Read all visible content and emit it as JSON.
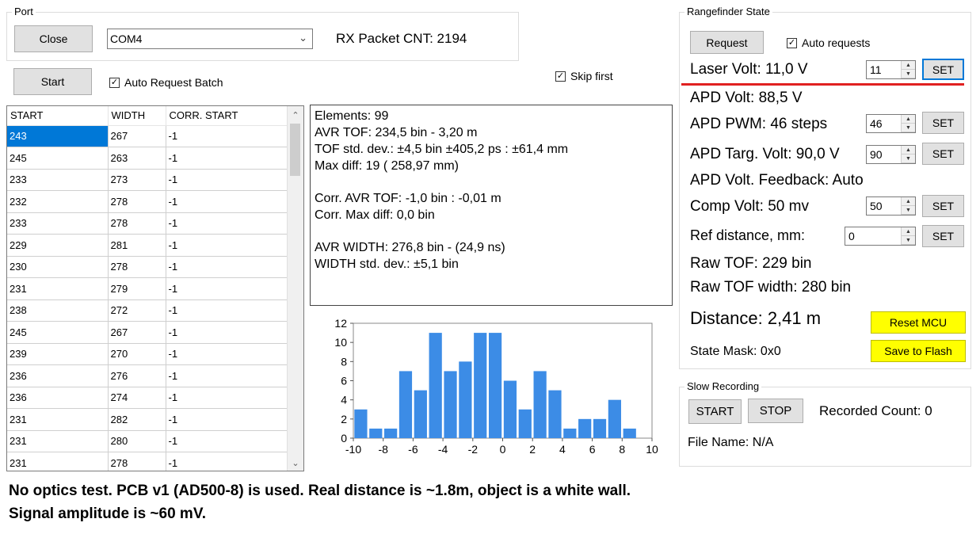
{
  "port": {
    "group_title": "Port",
    "close_button": "Close",
    "com_port": "COM4",
    "rx_packet_cnt": "RX Packet CNT: 2194",
    "start_button": "Start",
    "auto_request_batch": "Auto Request Batch",
    "skip_first": "Skip first"
  },
  "table": {
    "columns": [
      "START",
      "WIDTH",
      "CORR. START"
    ],
    "rows": [
      [
        "243",
        "267",
        "-1"
      ],
      [
        "245",
        "263",
        "-1"
      ],
      [
        "233",
        "273",
        "-1"
      ],
      [
        "232",
        "278",
        "-1"
      ],
      [
        "233",
        "278",
        "-1"
      ],
      [
        "229",
        "281",
        "-1"
      ],
      [
        "230",
        "278",
        "-1"
      ],
      [
        "231",
        "279",
        "-1"
      ],
      [
        "238",
        "272",
        "-1"
      ],
      [
        "245",
        "267",
        "-1"
      ],
      [
        "239",
        "270",
        "-1"
      ],
      [
        "236",
        "276",
        "-1"
      ],
      [
        "236",
        "274",
        "-1"
      ],
      [
        "231",
        "282",
        "-1"
      ],
      [
        "231",
        "280",
        "-1"
      ],
      [
        "231",
        "278",
        "-1"
      ]
    ]
  },
  "stats": {
    "elements": "Elements: 99",
    "avr_tof": "AVR TOF: 234,5 bin - 3,20  m",
    "tof_std": "TOF std. dev.: ±4,5 bin ±405,2 ps : ±61,4 mm",
    "max_diff": "Max diff: 19 ( 258,97 mm)",
    "corr_avr_tof": "Corr. AVR TOF: -1,0 bin : -0,01  m",
    "corr_max_diff": "Corr. Max diff: 0,0 bin",
    "avr_width": "AVR WIDTH: 276,8 bin - (24,9 ns)",
    "width_std": "WIDTH std. dev.: ±5,1 bin"
  },
  "chart_data": {
    "type": "bar",
    "x": [
      -9.5,
      -8.5,
      -7.5,
      -6.5,
      -5.5,
      -4.5,
      -3.5,
      -2.5,
      -1.5,
      -0.5,
      0.5,
      1.5,
      2.5,
      3.5,
      4.5,
      5.5,
      6.5,
      7.5,
      8.5,
      9.5
    ],
    "values": [
      3,
      1,
      1,
      7,
      5,
      11,
      7,
      8,
      11,
      11,
      6,
      3,
      7,
      5,
      1,
      2,
      2,
      4,
      1,
      0
    ],
    "xlim": [
      -10,
      10
    ],
    "ylim": [
      0,
      12
    ],
    "xticks": [
      "-10",
      "-8",
      "-6",
      "-4",
      "-2",
      "0",
      "2",
      "4",
      "6",
      "8",
      "10"
    ],
    "yticks": [
      "0",
      "2",
      "4",
      "6",
      "8",
      "10",
      "12"
    ],
    "bar_color": "#3c8ce6",
    "grid": false
  },
  "rangefinder": {
    "group_title": "Rangefinder State",
    "request_button": "Request",
    "auto_requests": "Auto requests",
    "laser_volt": "Laser Volt: 11,0 V",
    "laser_volt_value": "11",
    "apd_volt": "APD Volt: 88,5 V",
    "apd_pwm": "APD PWM: 46 steps",
    "apd_pwm_value": "46",
    "apd_targ_volt": "APD Targ. Volt: 90,0 V",
    "apd_targ_value": "90",
    "apd_feedback": "APD Volt. Feedback: Auto",
    "comp_volt": "Comp Volt: 50 mv",
    "comp_volt_value": "50",
    "ref_distance": "Ref distance, mm:",
    "ref_distance_value": "0",
    "set_label": "SET",
    "raw_tof": "Raw TOF:  229 bin",
    "raw_tof_width": "Raw TOF width:  280 bin",
    "distance": "Distance: 2,41 m",
    "reset_mcu": "Reset MCU",
    "state_mask": "State Mask: 0x0",
    "save_to_flash": "Save to Flash"
  },
  "slow_recording": {
    "group_title": "Slow Recording",
    "start_button": "START",
    "stop_button": "STOP",
    "recorded_count": "Recorded Count: 0",
    "file_name": "File Name: N/A"
  },
  "note": {
    "line1": "No optics test. PCB v1 (AD500-8) is used. Real distance is ~1.8m, object is a white wall.",
    "line2": "Signal amplitude is ~60 mV."
  }
}
